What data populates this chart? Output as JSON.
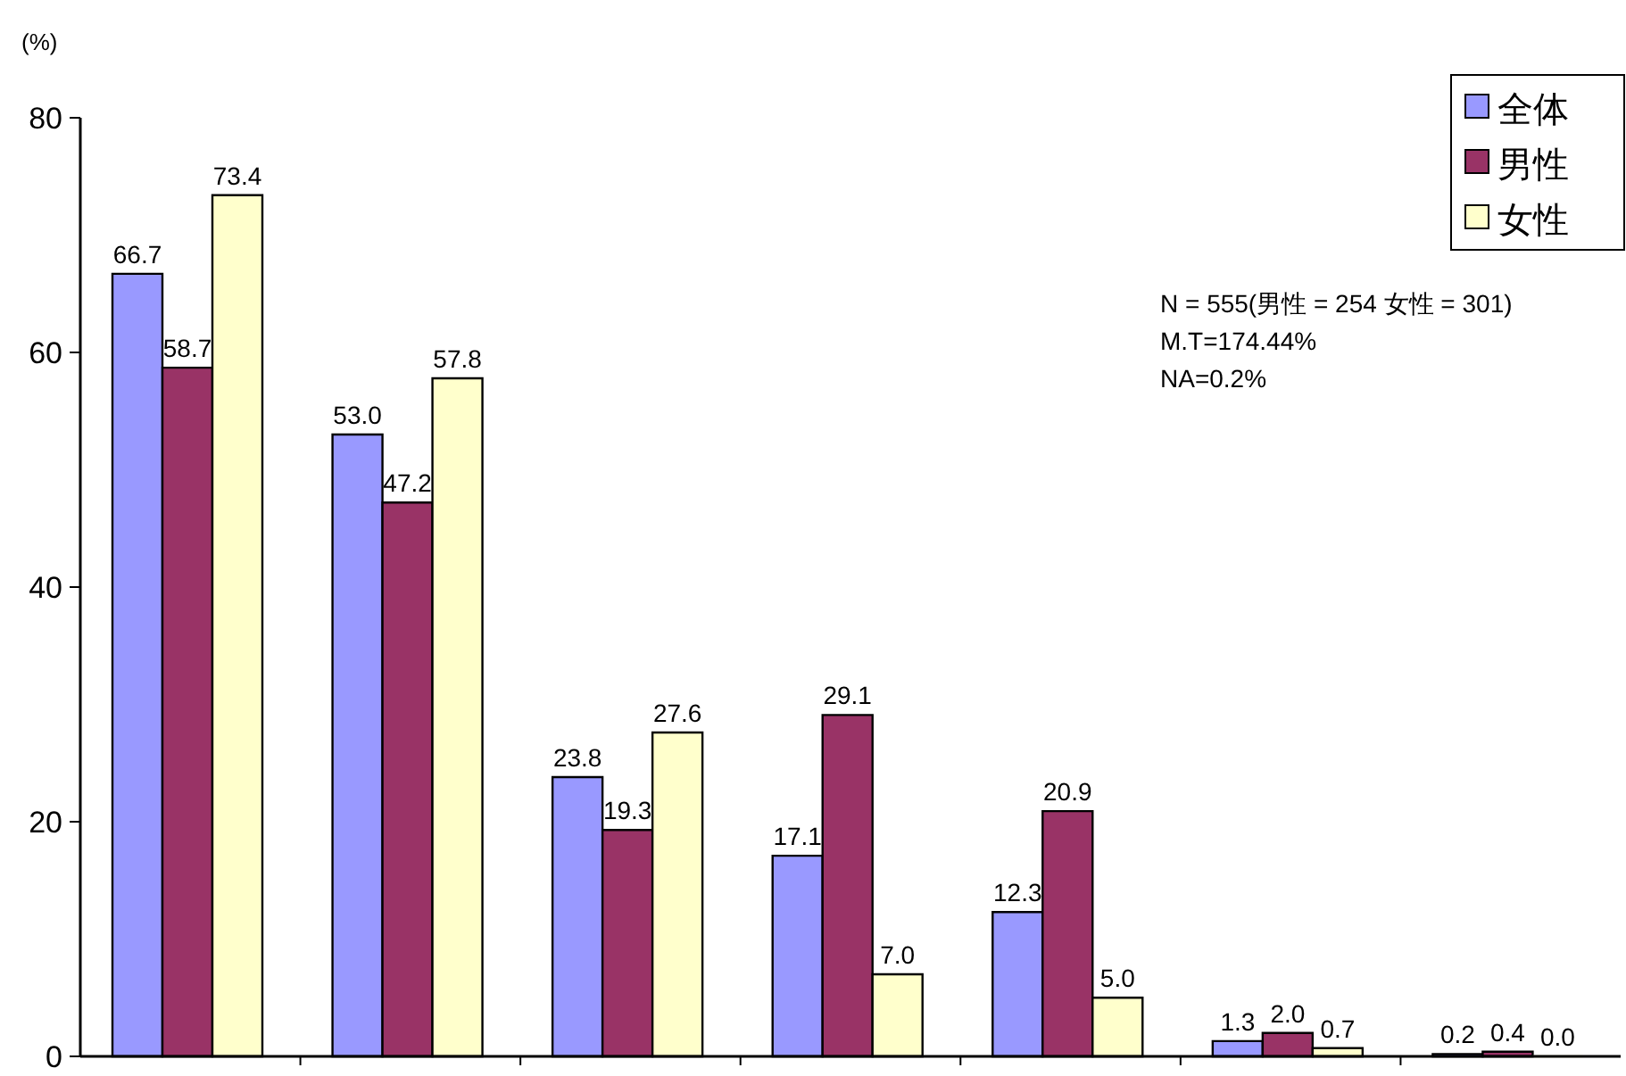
{
  "chart_data": {
    "type": "bar",
    "ylabel": "(%)",
    "categories": [
      null,
      null,
      null,
      null,
      null,
      null,
      null
    ],
    "series": [
      {
        "name": "全体",
        "color": "#9999ff",
        "values": [
          66.7,
          53.0,
          23.8,
          17.1,
          12.3,
          1.3,
          0.2
        ],
        "value_labels": [
          "66.7",
          "53.0",
          "23.8",
          "17.1",
          "12.3",
          "1.3",
          "0.2"
        ]
      },
      {
        "name": "男性",
        "color": "#993366",
        "values": [
          58.7,
          47.2,
          19.3,
          29.1,
          20.9,
          2.0,
          0.4
        ],
        "value_labels": [
          "58.7",
          "47.2",
          "19.3",
          "29.1",
          "20.9",
          "2.0",
          "0.4"
        ]
      },
      {
        "name": "女性",
        "color": "#ffffcc",
        "values": [
          73.4,
          57.8,
          27.6,
          7.0,
          5.0,
          0.7,
          0.0
        ],
        "value_labels": [
          "73.4",
          "57.8",
          "27.6",
          "7.0",
          "5.0",
          "0.7",
          "0.0"
        ]
      }
    ],
    "ylim": [
      0,
      80
    ],
    "yticks": [
      0,
      20,
      40,
      60,
      80
    ],
    "grid": false,
    "legend": "top right",
    "annotations": [
      "N = 555(男性 = 254 女性 = 301)",
      "M.T=174.44%",
      "NA=0.2%"
    ]
  }
}
